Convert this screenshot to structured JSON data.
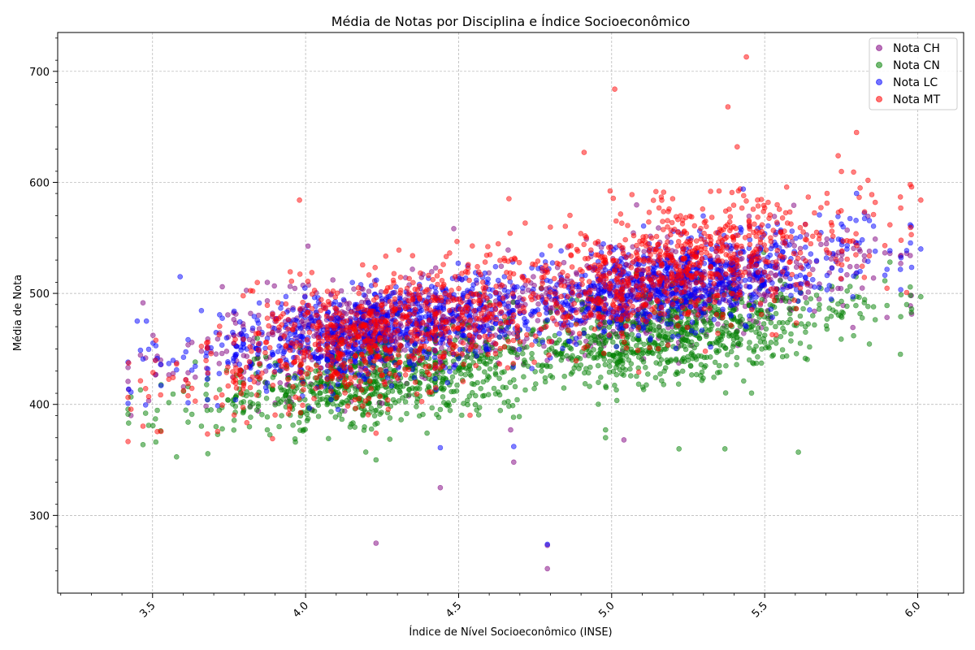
{
  "chart_data": {
    "type": "scatter",
    "title": "Média de Notas por Disciplina e Índice Socioeconômico",
    "xlabel": "Índice de Nível Socioeconômico (INSE)",
    "ylabel": "Média de Nota",
    "xlim": [
      3.19,
      6.15
    ],
    "ylim": [
      230,
      735
    ],
    "xticks": [
      3.5,
      4.0,
      4.5,
      5.0,
      5.5,
      6.0
    ],
    "xtick_labels": [
      "3.5",
      "4.0",
      "4.5",
      "5.0",
      "5.5",
      "6.0"
    ],
    "yticks": [
      300,
      400,
      500,
      600,
      700
    ],
    "ytick_labels": [
      "300",
      "400",
      "500",
      "600",
      "700"
    ],
    "grid": true,
    "legend_position": "top-right",
    "series": [
      {
        "name": "Nota CH",
        "color": "#800080",
        "model": {
          "intercept": 475,
          "slope": 38,
          "x_center": 4.5,
          "spread": 22
        },
        "outliers": [
          [
            4.23,
            275
          ],
          [
            4.79,
            252
          ],
          [
            4.79,
            273
          ],
          [
            4.44,
            325
          ],
          [
            4.68,
            348
          ],
          [
            4.67,
            377
          ],
          [
            5.04,
            368
          ],
          [
            4.25,
            401
          ]
        ]
      },
      {
        "name": "Nota CN",
        "color": "#008000",
        "model": {
          "intercept": 432,
          "slope": 40,
          "x_center": 4.5,
          "spread": 20
        },
        "outliers": [
          [
            4.23,
            350
          ],
          [
            5.61,
            357
          ],
          [
            5.37,
            360
          ],
          [
            5.22,
            360
          ],
          [
            4.98,
            370
          ],
          [
            4.98,
            377
          ],
          [
            6.01,
            497
          ]
        ]
      },
      {
        "name": "Nota LC",
        "color": "#0000ff",
        "model": {
          "intercept": 478,
          "slope": 42,
          "x_center": 4.5,
          "spread": 20
        },
        "outliers": [
          [
            4.44,
            361
          ],
          [
            4.68,
            362
          ],
          [
            4.79,
            274
          ],
          [
            3.45,
            475
          ],
          [
            3.48,
            475
          ],
          [
            3.59,
            515
          ],
          [
            5.43,
            594
          ],
          [
            5.8,
            590
          ],
          [
            6.01,
            540
          ]
        ]
      },
      {
        "name": "Nota MT",
        "color": "#ff0000",
        "model": {
          "intercept": 480,
          "slope": 62,
          "x_center": 4.5,
          "spread": 28
        },
        "outliers": [
          [
            5.44,
            713
          ],
          [
            5.01,
            684
          ],
          [
            5.38,
            668
          ],
          [
            5.8,
            645
          ],
          [
            5.41,
            632
          ],
          [
            4.91,
            627
          ],
          [
            3.98,
            584
          ],
          [
            6.01,
            584
          ],
          [
            5.74,
            624
          ],
          [
            4.23,
            374
          ],
          [
            5.85,
            589
          ]
        ]
      }
    ],
    "x_distribution": {
      "min": 3.42,
      "max": 5.98,
      "mode_centers": [
        4.25,
        5.2
      ]
    }
  }
}
